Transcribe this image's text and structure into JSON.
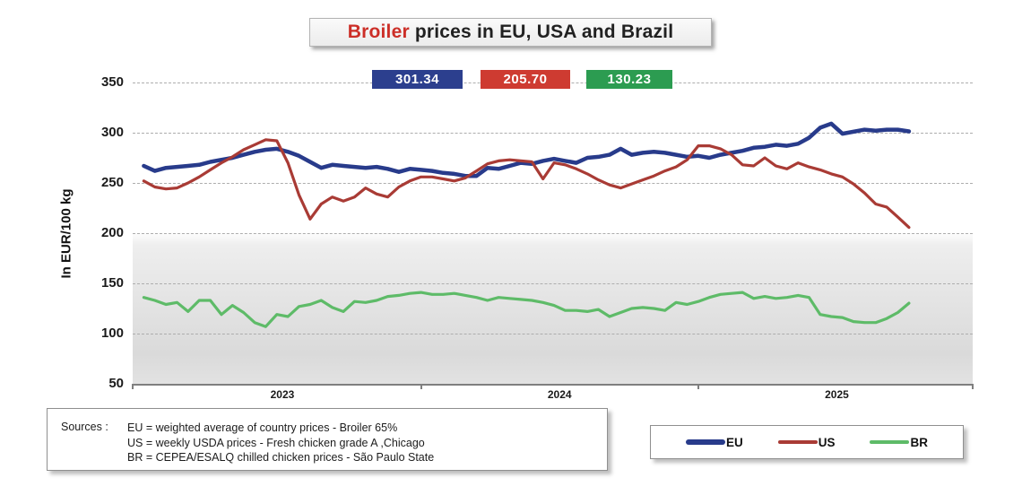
{
  "title": {
    "highlight": "Broiler",
    "rest": " prices in EU, USA and Brazil"
  },
  "badges": [
    {
      "series": "EU",
      "value": "301.34",
      "color": "#2c3f8e"
    },
    {
      "series": "US",
      "value": "205.70",
      "color": "#ce3b31"
    },
    {
      "series": "BR",
      "value": "130.23",
      "color": "#2c9c51"
    }
  ],
  "y_axis_title": "In EUR/100 kg",
  "legend": {
    "items": [
      {
        "label": "EU",
        "color": "#283b8b"
      },
      {
        "label": "US",
        "color": "#a93b35"
      },
      {
        "label": "BR",
        "color": "#5ebb68"
      }
    ]
  },
  "sources": {
    "label": "Sources :",
    "lines": [
      "EU  =  weighted average of country prices  - Broiler 65%",
      "US =  weekly USDA prices  -  Fresh chicken grade A ,Chicago",
      "BR =  CEPEA/ESALQ chilled chicken prices - São Paulo State"
    ]
  },
  "chart_data": {
    "type": "line",
    "title": "Broiler prices in EU, USA and Brazil",
    "xlabel": "",
    "ylabel": "In EUR/100 kg",
    "ylim": [
      50,
      350
    ],
    "grid": "horizontal-dashed",
    "legend_position": "bottom-right",
    "latest_values": {
      "EU": 301.34,
      "US": 205.7,
      "BR": 130.23
    },
    "axis": {
      "x_min": 2022.96,
      "x_max": 2025.99,
      "y_min": 50,
      "y_max": 350
    },
    "yticks": [
      350,
      300,
      250,
      200,
      150,
      100,
      50
    ],
    "xticks": [
      {
        "label": "2023",
        "x": 2023.5
      },
      {
        "label": "2024",
        "x": 2024.5
      },
      {
        "label": "2025",
        "x": 2025.5
      }
    ],
    "x_tick_marks": [
      2022.96,
      2024.0,
      2025.0,
      2025.99
    ],
    "x": [
      2023.0,
      2023.04,
      2023.08,
      2023.12,
      2023.16,
      2023.2,
      2023.24,
      2023.28,
      2023.32,
      2023.36,
      2023.4,
      2023.44,
      2023.48,
      2023.52,
      2023.56,
      2023.6,
      2023.64,
      2023.68,
      2023.72,
      2023.76,
      2023.8,
      2023.84,
      2023.88,
      2023.92,
      2023.96,
      2024.0,
      2024.04,
      2024.08,
      2024.12,
      2024.16,
      2024.2,
      2024.24,
      2024.28,
      2024.32,
      2024.36,
      2024.4,
      2024.44,
      2024.48,
      2024.52,
      2024.56,
      2024.6,
      2024.64,
      2024.68,
      2024.72,
      2024.76,
      2024.8,
      2024.84,
      2024.88,
      2024.92,
      2024.96,
      2025.0,
      2025.04,
      2025.08,
      2025.12,
      2025.16,
      2025.2,
      2025.24,
      2025.28,
      2025.32,
      2025.36,
      2025.4,
      2025.44,
      2025.48,
      2025.52,
      2025.56,
      2025.6,
      2025.64,
      2025.68,
      2025.72,
      2025.76
    ],
    "series": [
      {
        "name": "EU",
        "color": "#283b8b",
        "stroke_width": 4.5,
        "values": [
          267,
          262,
          265,
          266,
          267,
          268,
          271,
          273,
          275,
          278,
          281,
          283,
          284,
          281,
          277,
          271,
          265,
          268,
          267,
          266,
          265,
          266,
          264,
          261,
          264,
          263,
          262,
          260,
          259,
          257,
          257,
          265,
          264,
          267,
          270,
          269,
          272,
          274,
          272,
          270,
          275,
          276,
          278,
          284,
          278,
          280,
          281,
          280,
          278,
          276,
          277,
          275,
          278,
          280,
          282,
          285,
          286,
          288,
          287,
          289,
          295,
          305,
          309,
          299,
          301,
          303,
          302,
          303,
          303,
          301.34
        ]
      },
      {
        "name": "US",
        "color": "#a93b35",
        "stroke_width": 3.2,
        "values": [
          252,
          246,
          244,
          245,
          250,
          256,
          263,
          270,
          276,
          283,
          288,
          293,
          292,
          270,
          238,
          214,
          229,
          236,
          232,
          236,
          245,
          239,
          236,
          246,
          252,
          256,
          256,
          254,
          252,
          255,
          262,
          269,
          272,
          273,
          272,
          271,
          254,
          270,
          268,
          264,
          259,
          253,
          248,
          245,
          249,
          253,
          257,
          262,
          266,
          273,
          287,
          287,
          284,
          278,
          268,
          267,
          275,
          267,
          264,
          270,
          266,
          263,
          259,
          256,
          249,
          240,
          229,
          226,
          216,
          205.7
        ]
      },
      {
        "name": "BR",
        "color": "#5ebb68",
        "stroke_width": 3.2,
        "values": [
          136,
          133,
          129,
          131,
          122,
          133,
          133,
          119,
          128,
          121,
          111,
          107,
          119,
          117,
          127,
          129,
          133,
          126,
          122,
          132,
          131,
          133,
          137,
          138,
          140,
          141,
          139,
          139,
          140,
          138,
          136,
          133,
          136,
          135,
          134,
          133,
          131,
          128,
          123,
          123,
          122,
          124,
          117,
          121,
          125,
          126,
          125,
          123,
          131,
          129,
          132,
          136,
          139,
          140,
          141,
          135,
          137,
          135,
          136,
          138,
          136,
          119,
          117,
          116,
          112,
          111,
          111,
          115,
          121,
          130.23
        ]
      }
    ]
  }
}
